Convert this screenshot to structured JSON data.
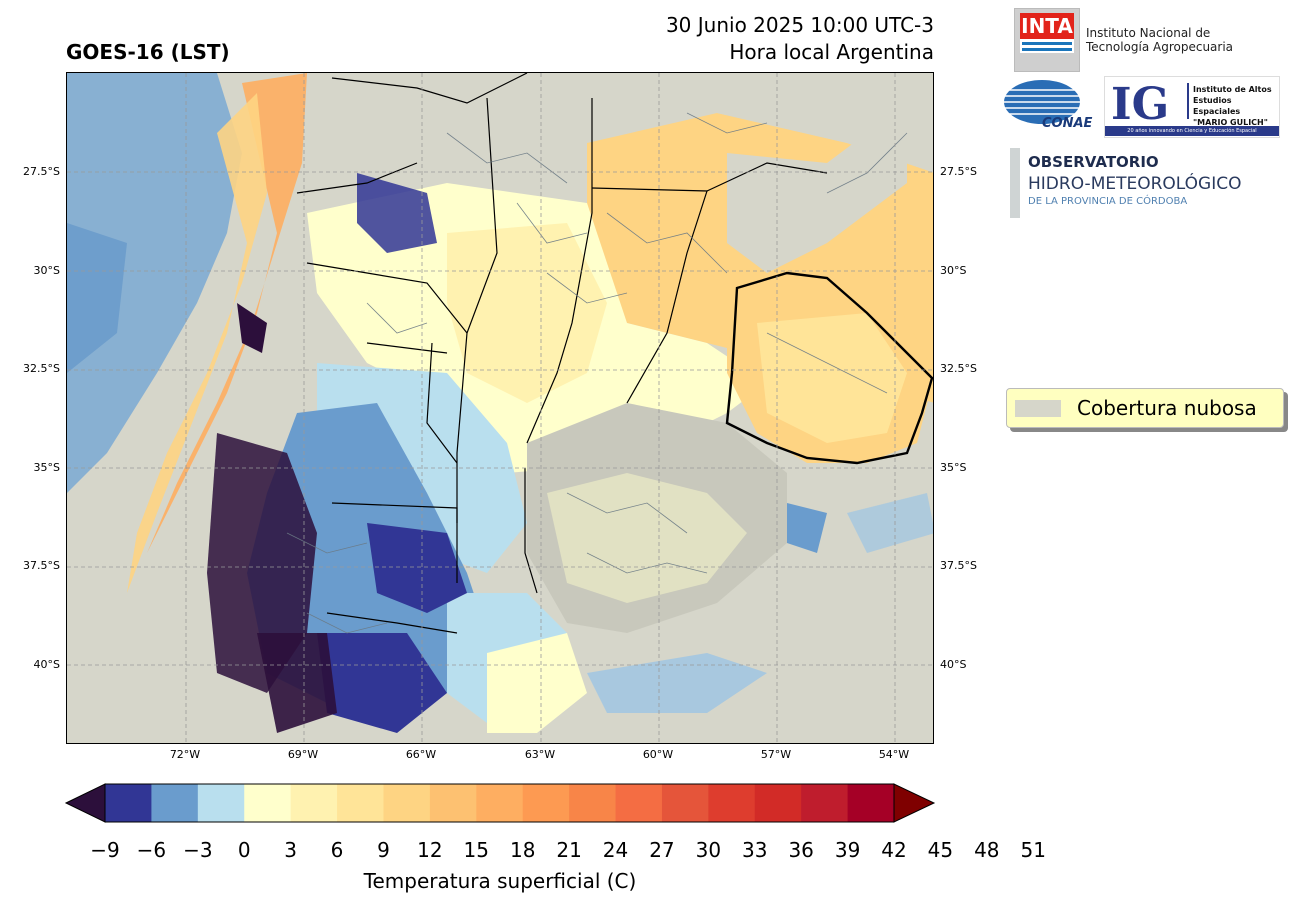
{
  "header": {
    "title_left": "GOES-16 (LST)",
    "title_right_line1": "30 Junio 2025 10:00 UTC-3",
    "title_right_line2": "Hora local Argentina"
  },
  "map": {
    "lat_labels": [
      "27.5°S",
      "30°S",
      "32.5°S",
      "35°S",
      "37.5°S",
      "40°S"
    ],
    "lon_labels": [
      "72°W",
      "69°W",
      "66°W",
      "63°W",
      "60°W",
      "57°W",
      "54°W"
    ],
    "cloud_color": "#d6d6ca",
    "ocean_color": "#6b9fcf"
  },
  "colorbar": {
    "ticks": [
      "−9",
      "−6",
      "−3",
      "0",
      "3",
      "6",
      "9",
      "12",
      "15",
      "18",
      "21",
      "24",
      "27",
      "30",
      "33",
      "36",
      "39",
      "42",
      "45",
      "48",
      "51"
    ],
    "label": "Temperatura superficial (C)",
    "colors": [
      "#2c0f3b",
      "#313695",
      "#6a9ccd",
      "#b9dfee",
      "#ffffcc",
      "#fff2b0",
      "#ffe498",
      "#fed483",
      "#fdc171",
      "#feae61",
      "#fd9a52",
      "#f88548",
      "#f46d43",
      "#e5553a",
      "#de3d2e",
      "#d22b27",
      "#bf1d2d",
      "#a50026",
      "#7f0000"
    ]
  },
  "legend": {
    "label": "Cobertura nubosa",
    "color": "#d6d6ca"
  },
  "logos": {
    "inta": "INTA",
    "inta_text_1": "Instituto Nacional de",
    "inta_text_2": "Tecnología Agropecuaria",
    "conae": "CONAE",
    "ig_letters": "IG",
    "ig_text_1": "Instituto de Altos",
    "ig_text_2": "Estudios Espaciales",
    "ig_text_3": "\"MARIO GULICH\"",
    "ig_sub": "20 años innovando en Ciencia y Educación Espacial",
    "obs_1": "OBSERVATORIO",
    "obs_2": "HIDRO-METEOROLÓGICO",
    "obs_3": "DE LA PROVINCIA DE CÓRDOBA"
  }
}
